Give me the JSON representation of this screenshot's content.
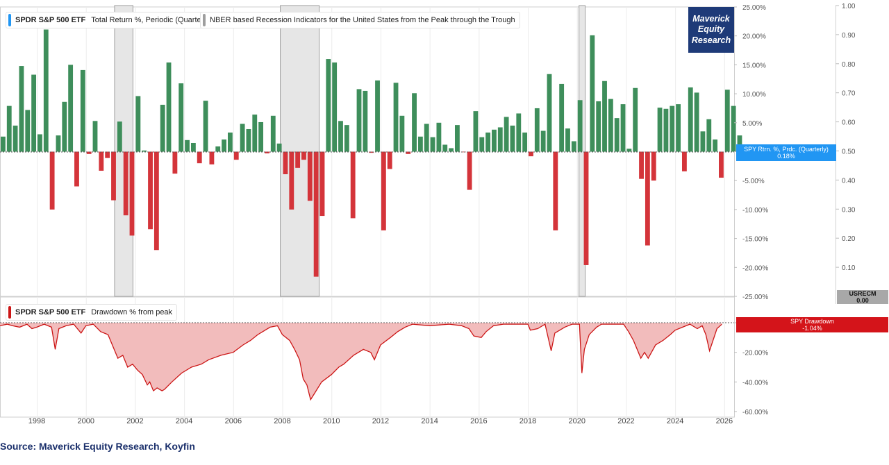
{
  "chart_data": [
    {
      "type": "bar",
      "series": [
        {
          "name": "SPDR S&P 500 ETF",
          "metric": "Total Return %, Periodic (Quarterly)",
          "unit": "%",
          "start_quarter": "1996-Q2",
          "values": [
            4.2,
            2.6,
            7.9,
            4.5,
            14.8,
            7.2,
            13.3,
            3,
            21.1,
            -10,
            2.8,
            8.6,
            15,
            -6,
            14.1,
            -0.4,
            5.3,
            -3.3,
            -1.1,
            -8.4,
            5.2,
            -11,
            -14.5,
            9.6,
            0.2,
            -13.4,
            -17,
            8.1,
            15.4,
            -3.8,
            11.8,
            2,
            1.5,
            -2,
            8.8,
            -2.2,
            0.9,
            2.1,
            3.3,
            -1.4,
            4.8,
            3.9,
            6.4,
            5.1,
            -0.3,
            6.2,
            1.4,
            -3.9,
            -10,
            -2.8,
            -1.4,
            -8.5,
            -21.6,
            -11.1,
            16,
            15.4,
            5.3,
            4.6,
            -11.5,
            10.8,
            10.5,
            -0.2,
            12.3,
            -13.6,
            -3,
            11.9,
            6.2,
            -0.4,
            10.1,
            2.6,
            4.8,
            2.5,
            5,
            1.2,
            0.6,
            4.6,
            -0.1,
            -6.6,
            7,
            2.5,
            3.3,
            3.8,
            4.2,
            6,
            4.5,
            6.6,
            3.3,
            -0.8,
            7.5,
            3.6,
            13.4,
            -13.6,
            11.7,
            4,
            1.8,
            8.9,
            -19.6,
            20.1,
            8.7,
            12.2,
            9.1,
            5.8,
            8.2,
            0.5,
            11,
            -4.7,
            -16.2,
            -5,
            7.6,
            7.4,
            7.9,
            8.2,
            -3.4,
            11.1,
            10.2,
            3.5,
            5.6,
            2.1,
            -4.5,
            10.7,
            7.9,
            2.8,
            0.18
          ]
        }
      ],
      "title": "",
      "ylabel": "",
      "ylim": [
        -25,
        25
      ],
      "yticks": [
        "25.00%",
        "20.00%",
        "15.00%",
        "10.00%",
        "5.00%",
        "0.00%",
        "-5.00%",
        "-10.00%",
        "-15.00%",
        "-20.00%",
        "-25.00%"
      ],
      "positive_color": "#3e8e5b",
      "negative_color": "#d4343a",
      "current_value_tag": "SPY Rtrn. %, Prdc. (Quarterly)",
      "current_value": "0.18%",
      "current_tag_color": "#2196f3"
    },
    {
      "type": "area",
      "name": "NBER based Recession Indicators for the United States from the Peak through the Trough",
      "symbol": "USRECM",
      "current_value": "0.00",
      "recession_periods": [
        [
          "2001-03",
          "2001-11"
        ],
        [
          "2007-12",
          "2009-06"
        ],
        [
          "2020-02",
          "2020-04"
        ]
      ],
      "ylim": [
        0,
        1
      ],
      "yticks": [
        "1.00",
        "0.90",
        "0.80",
        "0.70",
        "0.60",
        "0.50",
        "0.40",
        "0.30",
        "0.20",
        "0.10"
      ],
      "color": "#9e9e9e"
    },
    {
      "type": "area",
      "series": [
        {
          "name": "SPDR S&P 500 ETF",
          "metric": "Drawdown % from peak",
          "unit": "%",
          "x": [
            1996.5,
            1996.8,
            1997.0,
            1997.3,
            1997.6,
            1997.8,
            1998.0,
            1998.3,
            1998.6,
            1998.75,
            1998.9,
            1999.2,
            1999.5,
            1999.8,
            2000.0,
            2000.3,
            2000.6,
            2000.9,
            2001.1,
            2001.3,
            2001.5,
            2001.7,
            2001.9,
            2002.1,
            2002.3,
            2002.5,
            2002.6,
            2002.75,
            2002.9,
            2003.1,
            2003.2,
            2003.5,
            2003.9,
            2004.3,
            2004.7,
            2005.0,
            2005.5,
            2006.0,
            2006.4,
            2006.7,
            2007.0,
            2007.3,
            2007.5,
            2007.8,
            2008.0,
            2008.3,
            2008.5,
            2008.7,
            2008.85,
            2009.0,
            2009.15,
            2009.3,
            2009.6,
            2010.0,
            2010.3,
            2010.5,
            2010.9,
            2011.3,
            2011.6,
            2011.75,
            2012.0,
            2012.4,
            2012.7,
            2013.0,
            2013.3,
            2014.0,
            2014.8,
            2015.3,
            2015.6,
            2015.8,
            2016.1,
            2016.3,
            2016.6,
            2017.0,
            2017.5,
            2018.0,
            2018.1,
            2018.4,
            2018.7,
            2018.95,
            2019.1,
            2019.5,
            2019.8,
            2020.1,
            2020.2,
            2020.3,
            2020.5,
            2020.8,
            2021.0,
            2021.5,
            2021.9,
            2022.1,
            2022.3,
            2022.45,
            2022.6,
            2022.75,
            2022.9,
            2023.2,
            2023.5,
            2023.8,
            2024.0,
            2024.3,
            2024.6,
            2024.9,
            2025.1,
            2025.25,
            2025.4,
            2025.7,
            2025.9
          ],
          "values": [
            -2,
            -1,
            -2,
            -3,
            -1,
            -4,
            -3,
            -1,
            -3,
            -18,
            -4,
            -2,
            -1,
            -7,
            -2,
            -1,
            -6,
            -8,
            -16,
            -24,
            -22,
            -30,
            -28,
            -32,
            -35,
            -42,
            -40,
            -46,
            -44,
            -46,
            -45,
            -40,
            -34,
            -30,
            -28,
            -25,
            -22,
            -20,
            -15,
            -12,
            -8,
            -5,
            -3,
            -2,
            -8,
            -12,
            -18,
            -25,
            -38,
            -42,
            -52,
            -48,
            -40,
            -35,
            -30,
            -28,
            -22,
            -18,
            -20,
            -25,
            -15,
            -10,
            -6,
            -3,
            -1,
            -2,
            -1,
            -2,
            -4,
            -9,
            -10,
            -6,
            -2,
            -1,
            -1,
            -1,
            -5,
            -4,
            -1,
            -19,
            -7,
            -3,
            -1,
            -1,
            -34,
            -18,
            -8,
            -3,
            -1,
            -1,
            -1,
            -6,
            -12,
            -18,
            -24,
            -20,
            -24,
            -15,
            -12,
            -8,
            -5,
            -3,
            -1,
            -4,
            -2,
            -8,
            -19,
            -4,
            -1.04
          ],
          "color": "#cc1616",
          "fill": "#f2bcbc"
        }
      ],
      "ylim": [
        -60,
        0
      ],
      "yticks": [
        "0.00%",
        "-20.00%",
        "-40.00%",
        "-60.00%"
      ],
      "current_value_tag": "SPY Drawdown",
      "current_value": "-1.04%"
    }
  ],
  "x_axis": {
    "xlim": [
      1996.5,
      2026.4
    ],
    "ticks": [
      "1998",
      "2000",
      "2002",
      "2004",
      "2006",
      "2008",
      "2010",
      "2012",
      "2014",
      "2016",
      "2018",
      "2020",
      "2022",
      "2024",
      "2026"
    ]
  },
  "legends": {
    "returns": {
      "symbol": "SPDR S&P 500 ETF",
      "metric": "Total Return %, Periodic (Quarterly)",
      "color": "#2196f3"
    },
    "recession": {
      "label": "NBER based Recession Indicators for the United States from the Peak through the Trough",
      "color": "#9e9e9e"
    },
    "drawdown": {
      "symbol": "SPDR S&P 500 ETF",
      "metric": "Drawdown % from peak",
      "color": "#cc1616"
    }
  },
  "brand": {
    "line1": "Maverick",
    "line2": "Equity",
    "line3": "Research",
    "bg": "#1e3a78"
  },
  "source": "Source: Maverick Equity Research, Koyfin"
}
